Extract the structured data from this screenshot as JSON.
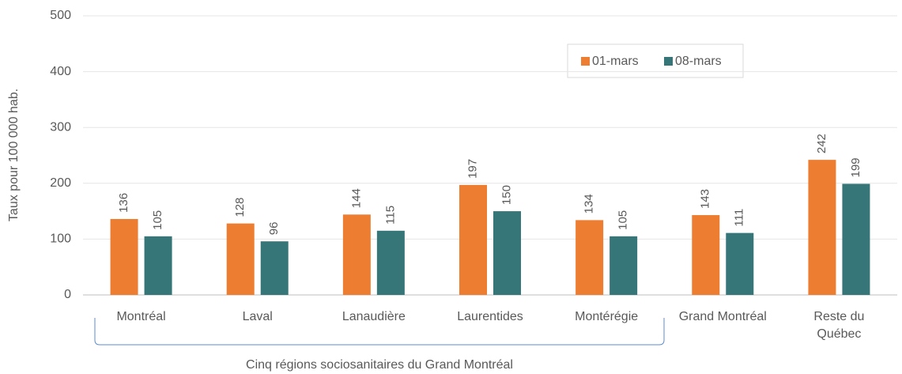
{
  "chart_data": {
    "type": "bar",
    "y_axis_label": "Taux pour 100 000 hab.",
    "annotation": "Cinq régions sociosanitaires du Grand Montréal",
    "categories": [
      "Montréal",
      "Laval",
      "Lanaudière",
      "Laurentides",
      "Montérégie",
      "Grand Montréal",
      "Reste du\nQuébec"
    ],
    "series": [
      {
        "name": "01-mars",
        "color": "#ED7D31",
        "values": [
          136,
          128,
          144,
          197,
          134,
          143,
          242
        ]
      },
      {
        "name": "08-mars",
        "color": "#367578",
        "values": [
          105,
          96,
          115,
          150,
          105,
          111,
          199
        ]
      }
    ],
    "ylim": [
      0,
      500
    ],
    "yticks": [
      0,
      100,
      200,
      300,
      400,
      500
    ],
    "grid": true,
    "legend": "top-right"
  }
}
